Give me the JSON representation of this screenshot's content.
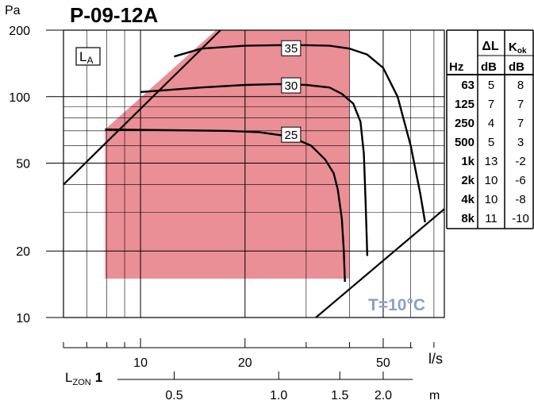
{
  "title": "P-09-12A",
  "colors": {
    "zone": "#ea8f96",
    "curve": "#000000",
    "temp_label": "#8aa0cc"
  },
  "chart_data": {
    "type": "line",
    "title": "P-09-12A",
    "x_axis": {
      "label": "l/s",
      "scale": "log",
      "range": [
        6,
        75
      ],
      "ticks": [
        10,
        20,
        50
      ]
    },
    "y_axis": {
      "label": "Pa",
      "scale": "log",
      "range": [
        10,
        200
      ],
      "ticks": [
        10,
        20,
        50,
        100,
        200
      ]
    },
    "throw_axis": {
      "label_main": "L",
      "label_sub": "ZON",
      "label_coef": "1",
      "unit": "m",
      "ticks": [
        "0.5",
        "1.0",
        "1.5",
        "2.0"
      ],
      "tick_values": [
        0.5,
        1.0,
        1.5,
        2.0
      ],
      "flow_at_ticks": [
        12.5,
        25,
        37.5,
        50
      ]
    },
    "grid": true,
    "legend_label": "L",
    "legend_sub": "A",
    "temp_label": "T=10°C",
    "shaded_zone": [
      {
        "x": 7.9,
        "y": 15
      },
      {
        "x": 7.9,
        "y": 71
      },
      {
        "x": 16.5,
        "y": 200
      },
      {
        "x": 40,
        "y": 200
      },
      {
        "x": 40,
        "y": 15
      }
    ],
    "limit_lines": [
      {
        "name": "upper",
        "points": [
          [
            6,
            40
          ],
          [
            17,
            200
          ]
        ]
      },
      {
        "name": "lower",
        "points": [
          [
            32,
            10
          ],
          [
            75,
            31
          ]
        ]
      }
    ],
    "series": [
      {
        "name": "35",
        "points": [
          [
            12.5,
            152
          ],
          [
            15,
            165
          ],
          [
            20,
            170
          ],
          [
            25,
            171
          ],
          [
            30,
            171
          ],
          [
            35,
            170
          ],
          [
            40,
            165
          ],
          [
            45,
            155
          ],
          [
            50,
            135
          ],
          [
            55,
            100
          ],
          [
            60,
            60
          ],
          [
            64,
            36
          ],
          [
            66,
            27
          ]
        ]
      },
      {
        "name": "30",
        "points": [
          [
            10,
            105
          ],
          [
            15,
            110
          ],
          [
            20,
            113
          ],
          [
            25,
            114
          ],
          [
            30,
            113
          ],
          [
            35,
            110
          ],
          [
            38,
            103
          ],
          [
            41,
            93
          ],
          [
            43,
            77
          ],
          [
            44,
            55
          ],
          [
            44.5,
            33
          ],
          [
            45,
            19
          ]
        ]
      },
      {
        "name": "25",
        "points": [
          [
            7.9,
            71
          ],
          [
            12,
            70.5
          ],
          [
            18,
            70
          ],
          [
            22,
            69
          ],
          [
            27,
            66
          ],
          [
            31,
            60
          ],
          [
            34,
            52
          ],
          [
            36,
            45
          ],
          [
            37,
            38
          ],
          [
            38,
            28
          ],
          [
            38.5,
            20
          ],
          [
            38.8,
            14.5
          ]
        ]
      }
    ],
    "curve_labels": [
      {
        "text": "35",
        "x": 27,
        "y": 165
      },
      {
        "text": "30",
        "x": 27,
        "y": 112
      },
      {
        "text": "25",
        "x": 27,
        "y": 67
      }
    ]
  },
  "table": {
    "headers": {
      "hz_top": "",
      "dl_top": "ΔL",
      "k_top_main": "K",
      "k_top_sub": "ok",
      "hz_unit": "Hz",
      "dl_unit": "dB",
      "k_unit": "dB"
    },
    "rows": [
      [
        "63",
        "5",
        "8"
      ],
      [
        "125",
        "7",
        "7"
      ],
      [
        "250",
        "4",
        "7"
      ],
      [
        "500",
        "5",
        "3"
      ],
      [
        "1k",
        "13",
        "-2"
      ],
      [
        "2k",
        "10",
        "-6"
      ],
      [
        "4k",
        "10",
        "-8"
      ],
      [
        "8k",
        "11",
        "-10"
      ]
    ]
  }
}
